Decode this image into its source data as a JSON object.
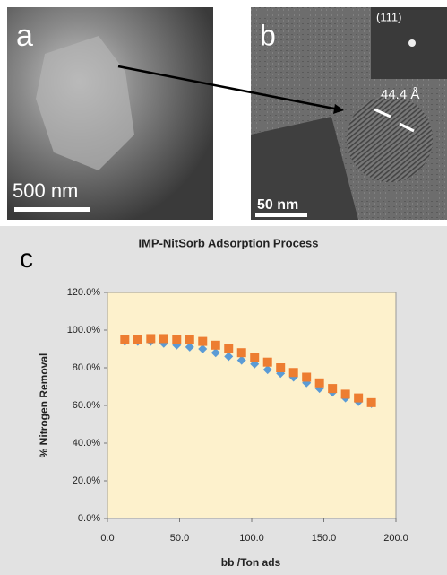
{
  "panels": {
    "a": {
      "label": "a",
      "scale_bar": "500 nm"
    },
    "b": {
      "label": "b",
      "scale_bar": "50 nm",
      "inset": "(111)",
      "spacing": "44.4 Å"
    },
    "c": {
      "label": "c"
    }
  },
  "chart_data": {
    "type": "scatter",
    "title": "IMP-NitSorb Adsorption Process",
    "x_label": "bb /Ton ads",
    "y_label": "% Nitrogen Removal",
    "series": [
      {
        "color": "#5b9bd5",
        "marker": "diamond",
        "x": [
          12,
          21,
          30,
          39,
          48,
          57,
          66,
          75,
          84,
          93,
          102,
          111,
          120,
          129,
          138,
          147,
          156,
          165,
          174,
          183
        ],
        "values": [
          94,
          94,
          94,
          93,
          92,
          91,
          90,
          88,
          86,
          84,
          82,
          79,
          77,
          75,
          72,
          69,
          67,
          64,
          62,
          61
        ]
      },
      {
        "color": "#ed7d31",
        "marker": "square",
        "x": [
          12,
          21,
          30,
          39,
          48,
          57,
          66,
          75,
          84,
          93,
          102,
          111,
          120,
          129,
          138,
          147,
          156,
          165,
          174,
          183
        ],
        "values": [
          95,
          95,
          95.5,
          95.5,
          95,
          95,
          94,
          92,
          90,
          88,
          85.5,
          83,
          80,
          77.5,
          75,
          72,
          69,
          66,
          64,
          61.5
        ]
      }
    ],
    "xlim": [
      0,
      200
    ],
    "xticks": [
      {
        "value": 0,
        "label": "0.0"
      },
      {
        "value": 50,
        "label": "50.0"
      },
      {
        "value": 100,
        "label": "100.0"
      },
      {
        "value": 150,
        "label": "150.0"
      },
      {
        "value": 200,
        "label": "200.0"
      }
    ],
    "ylim": [
      0,
      120
    ],
    "yticks": [
      {
        "value": 0,
        "label": "0.0%"
      },
      {
        "value": 20,
        "label": "20.0%"
      },
      {
        "value": 40,
        "label": "40.0%"
      },
      {
        "value": 60,
        "label": "60.0%"
      },
      {
        "value": 80,
        "label": "80.0%"
      },
      {
        "value": 100,
        "label": "100.0%"
      },
      {
        "value": 120,
        "label": "120.0%"
      }
    ],
    "plot_background": "#fdf1cc"
  }
}
